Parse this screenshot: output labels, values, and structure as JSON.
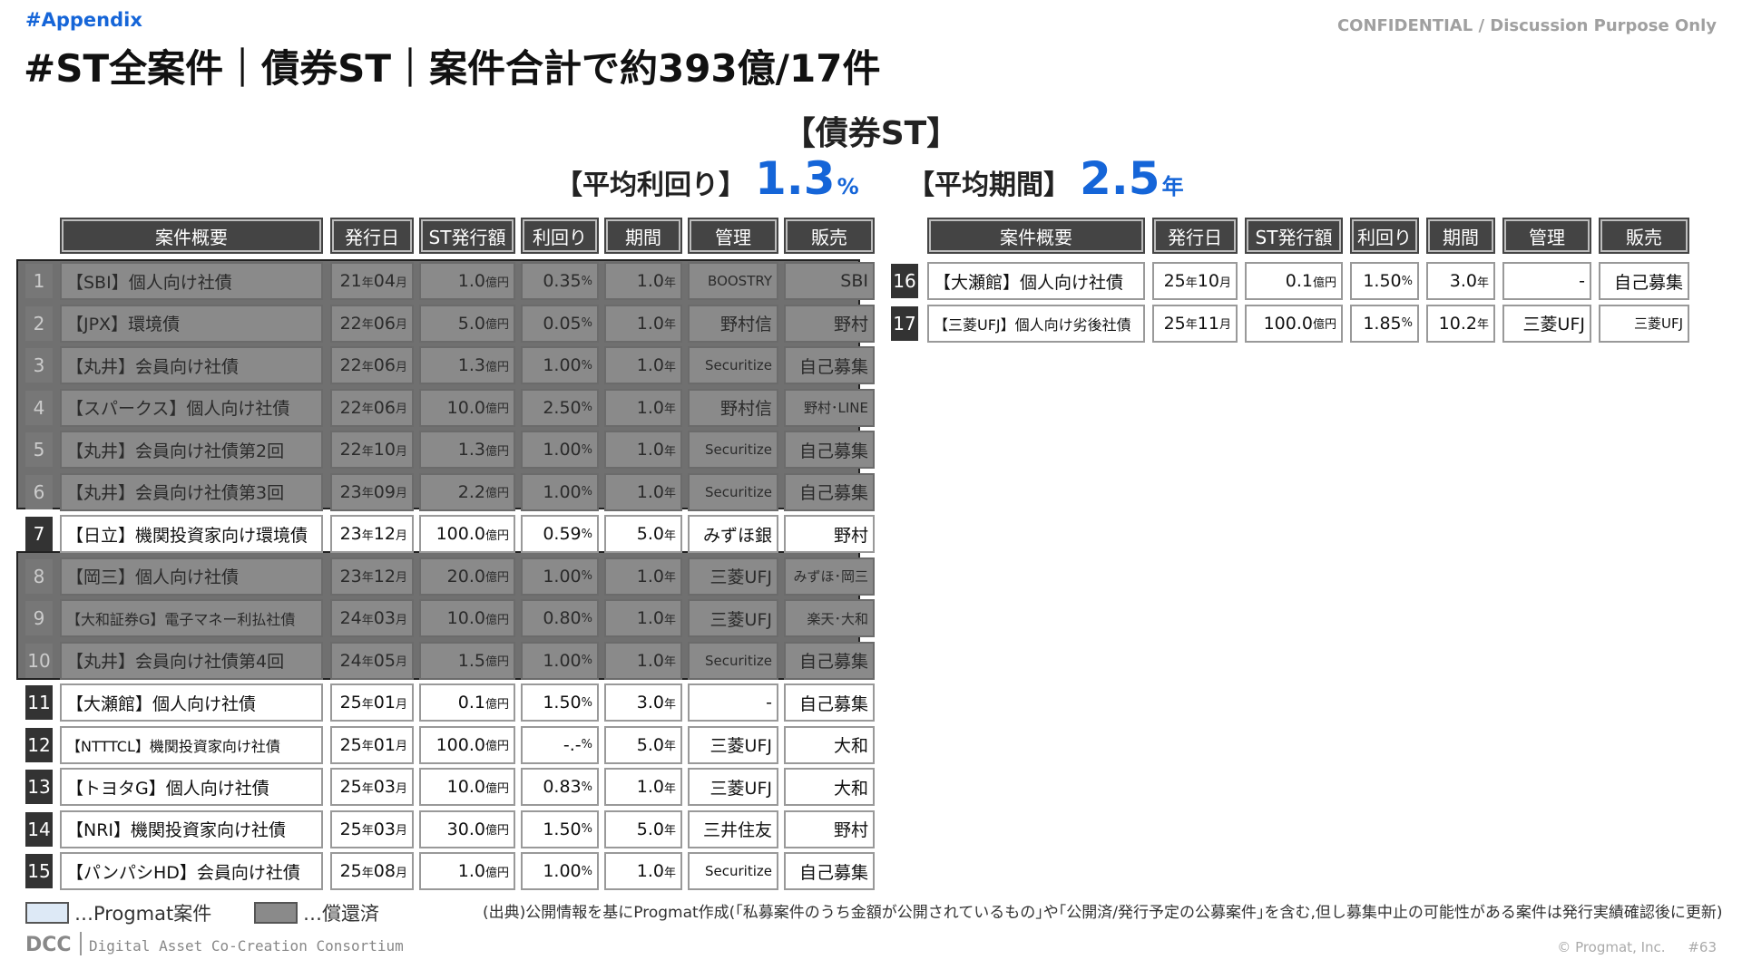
{
  "header": {
    "tag": "#Appendix",
    "confidential": "CONFIDENTIAL / Discussion Purpose Only",
    "title": "#ST全案件｜債券ST｜案件合計で約393億/17件"
  },
  "section_title": "【債券ST】",
  "stats": {
    "yield_label": "【平均利回り】",
    "yield_value": "1.3",
    "yield_unit": "%",
    "period_label": "【平均期間】",
    "period_value": "2.5",
    "period_unit": "年"
  },
  "columns": [
    "案件概要",
    "発行日",
    "ST発行額",
    "利回り",
    "期間",
    "管理",
    "販売"
  ],
  "units": {
    "year": "年",
    "month": "月",
    "oku": "億円",
    "pct": "%",
    "period": "年"
  },
  "rows_left": [
    {
      "no": "1",
      "name": "【SBI】個人向け社債",
      "date_y": "21",
      "date_m": "04",
      "amount": "1.0",
      "yield": "0.35",
      "period": "1.0",
      "manager": "BOOSTRY",
      "seller": "SBI",
      "status": "repaid"
    },
    {
      "no": "2",
      "name": "【JPX】環境債",
      "date_y": "22",
      "date_m": "06",
      "amount": "5.0",
      "yield": "0.05",
      "period": "1.0",
      "manager": "野村信",
      "seller": "野村",
      "status": "repaid"
    },
    {
      "no": "3",
      "name": "【丸井】会員向け社債",
      "date_y": "22",
      "date_m": "06",
      "amount": "1.3",
      "yield": "1.00",
      "period": "1.0",
      "manager": "Securitize",
      "seller": "自己募集",
      "status": "repaid"
    },
    {
      "no": "4",
      "name": "【スパークス】個人向け社債",
      "date_y": "22",
      "date_m": "06",
      "amount": "10.0",
      "yield": "2.50",
      "period": "1.0",
      "manager": "野村信",
      "seller": "野村･LINE",
      "status": "repaid"
    },
    {
      "no": "5",
      "name": "【丸井】会員向け社債第2回",
      "date_y": "22",
      "date_m": "10",
      "amount": "1.3",
      "yield": "1.00",
      "period": "1.0",
      "manager": "Securitize",
      "seller": "自己募集",
      "status": "repaid"
    },
    {
      "no": "6",
      "name": "【丸井】会員向け社債第3回",
      "date_y": "23",
      "date_m": "09",
      "amount": "2.2",
      "yield": "1.00",
      "period": "1.0",
      "manager": "Securitize",
      "seller": "自己募集",
      "status": "repaid"
    },
    {
      "no": "7",
      "name": "【日立】機関投資家向け環境債",
      "date_y": "23",
      "date_m": "12",
      "amount": "100.0",
      "yield": "0.59",
      "period": "5.0",
      "manager": "みずほ銀",
      "seller": "野村",
      "status": "normal"
    },
    {
      "no": "8",
      "name": "【岡三】個人向け社債",
      "date_y": "23",
      "date_m": "12",
      "amount": "20.0",
      "yield": "1.00",
      "period": "1.0",
      "manager": "三菱UFJ",
      "seller": "みずほ･岡三",
      "status": "repaid"
    },
    {
      "no": "9",
      "name": "【大和証券G】電子マネー利払社債",
      "date_y": "24",
      "date_m": "03",
      "amount": "10.0",
      "yield": "0.80",
      "period": "1.0",
      "manager": "三菱UFJ",
      "seller": "楽天･大和",
      "status": "repaid"
    },
    {
      "no": "10",
      "name": "【丸井】会員向け社債第4回",
      "date_y": "24",
      "date_m": "05",
      "amount": "1.5",
      "yield": "1.00",
      "period": "1.0",
      "manager": "Securitize",
      "seller": "自己募集",
      "status": "repaid"
    },
    {
      "no": "11",
      "name": "【大瀬館】個人向け社債",
      "date_y": "25",
      "date_m": "01",
      "amount": "0.1",
      "yield": "1.50",
      "period": "3.0",
      "manager": "-",
      "seller": "自己募集",
      "status": "normal"
    },
    {
      "no": "12",
      "name": "【NTTTCL】機関投資家向け社債",
      "date_y": "25",
      "date_m": "01",
      "amount": "100.0",
      "yield": "-.-",
      "period": "5.0",
      "manager": "三菱UFJ",
      "seller": "大和",
      "status": "progmat"
    },
    {
      "no": "13",
      "name": "【トヨタG】個人向け社債",
      "date_y": "25",
      "date_m": "03",
      "amount": "10.0",
      "yield": "0.83",
      "period": "1.0",
      "manager": "三菱UFJ",
      "seller": "大和",
      "status": "progmat"
    },
    {
      "no": "14",
      "name": "【NRI】機関投資家向け社債",
      "date_y": "25",
      "date_m": "03",
      "amount": "30.0",
      "yield": "1.50",
      "period": "5.0",
      "manager": "三井住友",
      "seller": "野村",
      "status": "normal"
    },
    {
      "no": "15",
      "name": "【パンパシHD】会員向け社債",
      "date_y": "25",
      "date_m": "08",
      "amount": "1.0",
      "yield": "1.00",
      "period": "1.0",
      "manager": "Securitize",
      "seller": "自己募集",
      "status": "normal"
    }
  ],
  "rows_right": [
    {
      "no": "16",
      "name": "【大瀬館】個人向け社債",
      "date_y": "25",
      "date_m": "10",
      "amount": "0.1",
      "yield": "1.50",
      "period": "3.0",
      "manager": "-",
      "seller": "自己募集",
      "status": "normal"
    },
    {
      "no": "17",
      "name": "【三菱UFJ】個人向け劣後社債",
      "date_y": "25",
      "date_m": "11",
      "amount": "100.0",
      "yield": "1.85",
      "period": "10.2",
      "manager": "三菱UFJ",
      "seller": "三菱UFJ",
      "status": "progmat"
    }
  ],
  "legend": {
    "progmat_label": "…Progmat案件",
    "repaid_label": "…償還済",
    "progmat_color": "#dde9f6",
    "repaid_color": "#8a8a8a"
  },
  "source": "(出典)公開情報を基にProgmat作成(｢私募案件のうち金額が公開されているもの｣や｢公開済/発行予定の公募案件｣を含む,但し募集中止の可能性がある案件は発行実績確認後に更新)",
  "footer": {
    "logo": "DCC",
    "org": "Digital Asset Co-Creation Consortium",
    "copyright": "© Progmat, Inc.",
    "page": "#63"
  },
  "colors": {
    "accent": "#1565d8",
    "header_bg": "#444444",
    "repaid_bg": "#8a8a8a",
    "progmat_bg": "#dde9f6"
  }
}
